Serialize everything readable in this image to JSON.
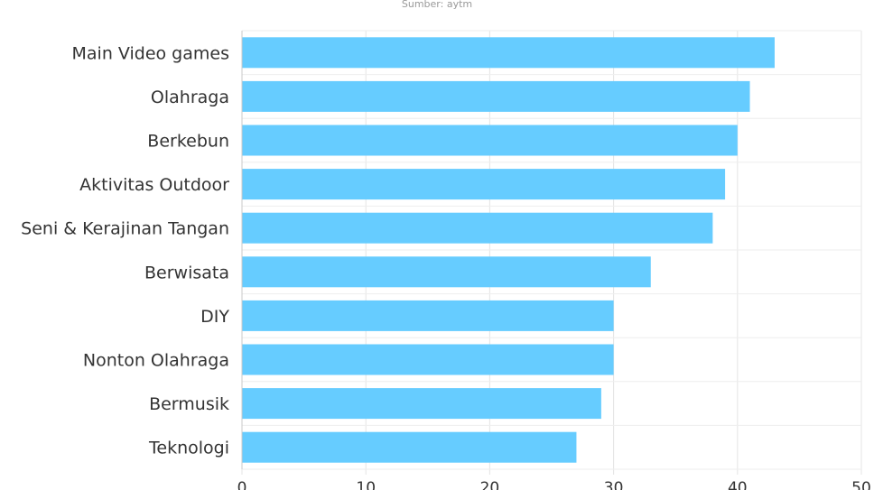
{
  "chart_data": {
    "type": "bar",
    "orientation": "horizontal",
    "subtitle": "Sumber: aytm",
    "categories": [
      "Main Video games",
      "Olahraga",
      "Berkebun",
      "Aktivitas Outdoor",
      "Seni & Kerajinan Tangan",
      "Berwisata",
      "DIY",
      "Nonton Olahraga",
      "Bermusik",
      "Teknologi"
    ],
    "values": [
      43,
      41,
      40,
      39,
      38,
      33,
      30,
      30,
      29,
      27
    ],
    "xlim": [
      0,
      50
    ],
    "xticks": [
      "0",
      "10",
      "20",
      "30",
      "40",
      "50"
    ],
    "grid": true,
    "legend": "none",
    "bar_color": "#66ccff"
  }
}
